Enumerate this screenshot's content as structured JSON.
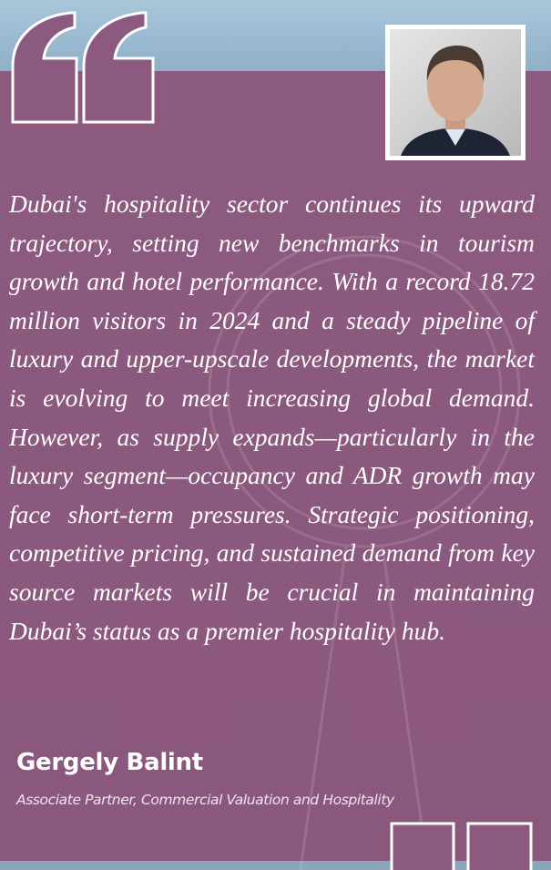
{
  "quote": "Dubai's hospitality sector continues its upward trajectory, setting new benchmarks in tourism growth and hotel performance. With a record 18.72 million visitors in 2024 and a steady pipeline of luxury and upper-upscale developments, the market is evolving to meet increasing global demand. However, as supply expands—particularly in the luxury segment—occupancy and ADR growth may face short-term pressures. Strategic positioning, competitive pricing, and sustained demand from key source markets will be crucial in maintaining Dubai’s status as a premier hospitality hub.",
  "author": {
    "name": "Gergely Balint",
    "role": "Associate Partner, Commercial Valuation and Hospitality"
  }
}
